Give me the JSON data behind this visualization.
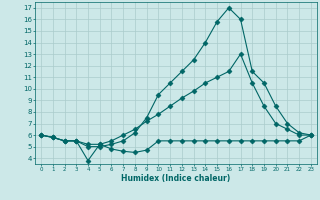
{
  "xlabel": "Humidex (Indice chaleur)",
  "background_color": "#cce8e8",
  "grid_color": "#aacccc",
  "line_color": "#006666",
  "xlim": [
    -0.5,
    23.5
  ],
  "ylim": [
    3.5,
    17.5
  ],
  "xticks": [
    0,
    1,
    2,
    3,
    4,
    5,
    6,
    7,
    8,
    9,
    10,
    11,
    12,
    13,
    14,
    15,
    16,
    17,
    18,
    19,
    20,
    21,
    22,
    23
  ],
  "yticks": [
    4,
    5,
    6,
    7,
    8,
    9,
    10,
    11,
    12,
    13,
    14,
    15,
    16,
    17
  ],
  "line1_x": [
    0,
    1,
    2,
    3,
    4,
    5,
    6,
    7,
    8,
    9,
    10,
    11,
    12,
    13,
    14,
    15,
    16,
    17,
    18,
    19,
    20,
    21,
    22,
    23
  ],
  "line1_y": [
    6.0,
    5.8,
    5.5,
    5.5,
    3.8,
    5.2,
    4.8,
    4.6,
    4.5,
    4.7,
    5.5,
    5.5,
    5.5,
    5.5,
    5.5,
    5.5,
    5.5,
    5.5,
    5.5,
    5.5,
    5.5,
    5.5,
    5.5,
    6.0
  ],
  "line2_x": [
    0,
    1,
    2,
    3,
    4,
    5,
    6,
    7,
    8,
    9,
    10,
    11,
    12,
    13,
    14,
    15,
    16,
    17,
    18,
    19,
    20,
    21,
    22,
    23
  ],
  "line2_y": [
    6.0,
    5.8,
    5.5,
    5.5,
    5.2,
    5.2,
    5.5,
    6.0,
    6.5,
    7.2,
    7.8,
    8.5,
    9.2,
    9.8,
    10.5,
    11.0,
    11.5,
    13.0,
    10.5,
    8.5,
    7.0,
    6.5,
    6.0,
    6.0
  ],
  "line3_x": [
    0,
    1,
    2,
    3,
    4,
    5,
    6,
    7,
    8,
    9,
    10,
    11,
    12,
    13,
    14,
    15,
    16,
    17,
    18,
    19,
    20,
    21,
    22,
    23
  ],
  "line3_y": [
    6.0,
    5.8,
    5.5,
    5.5,
    5.0,
    5.0,
    5.2,
    5.5,
    6.2,
    7.5,
    9.5,
    10.5,
    11.5,
    12.5,
    14.0,
    15.8,
    17.0,
    16.0,
    11.5,
    10.5,
    8.5,
    7.0,
    6.2,
    6.0
  ]
}
